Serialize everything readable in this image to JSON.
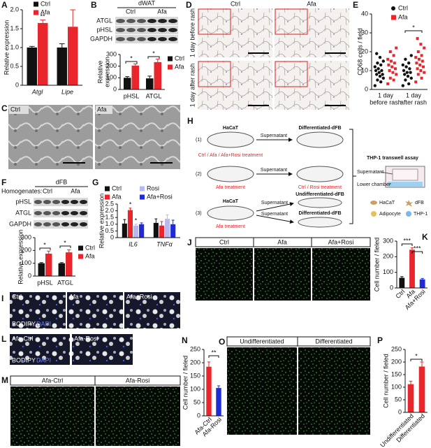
{
  "chart_data": [
    {
      "type": "bar",
      "panel": "A",
      "y_label": "Relative expression",
      "categories": [
        "Atgl",
        "Lipe"
      ],
      "series": [
        {
          "name": "Ctrl",
          "color": "#111111",
          "values": [
            1.0,
            1.0
          ],
          "errors": [
            0.03,
            0.1
          ]
        },
        {
          "name": "Afa",
          "color": "#e8262c",
          "values": [
            1.65,
            1.55
          ],
          "errors": [
            0.08,
            0.45
          ]
        }
      ],
      "ylim": [
        0,
        2
      ],
      "yticks": [
        0,
        0.5,
        {
          "value": 1,
          "label": "1.0"
        },
        1.5,
        {
          "value": 2,
          "label": "2.0"
        }
      ],
      "annotations": [
        "**"
      ]
    },
    {
      "type": "bar",
      "y_label": [
        "Relative",
        "expression"
      ],
      "categories": [
        "pHSL",
        "ATGL"
      ],
      "series": [
        {
          "name": "Ctrl",
          "color": "#111111",
          "values": [
            100,
            95
          ],
          "errors": [
            10,
            20
          ]
        },
        {
          "name": "Afa",
          "color": "#e8262c",
          "values": [
            205,
            235
          ],
          "errors": [
            15,
            25
          ]
        }
      ],
      "ylim": [
        0,
        300
      ],
      "yticks": [
        0,
        100,
        200,
        300
      ],
      "annotations": [
        "*",
        "*"
      ]
    },
    {
      "type": "dot",
      "panel": "E",
      "y_label": "CD68 cells / field",
      "categories": [
        [
          "1 day",
          "before rash"
        ],
        [
          "1 day",
          "after rash"
        ]
      ],
      "series": [
        {
          "name": "Ctrl",
          "color": "#111111",
          "marker": "circle",
          "values": [
            [
              2,
              4,
              5,
              6,
              7,
              8,
              8,
              9,
              10,
              10,
              11,
              12,
              13,
              14,
              15,
              17,
              19
            ],
            [
              2,
              3,
              5,
              6,
              7,
              8,
              9,
              9,
              10,
              11,
              12,
              13,
              14,
              16,
              18
            ]
          ]
        },
        {
          "name": "Afa",
          "color": "#e8262c",
          "marker": "square",
          "values": [
            [
              3,
              5,
              6,
              8,
              9,
              10,
              11,
              12,
              13,
              14,
              15,
              16,
              18,
              20,
              22
            ],
            [
              4,
              6,
              8,
              9,
              10,
              11,
              12,
              13,
              14,
              15,
              16,
              17,
              18,
              20,
              22,
              24,
              27
            ]
          ]
        }
      ],
      "ylim": [
        0,
        40
      ],
      "yticks": [
        0,
        10,
        20,
        30,
        40
      ],
      "annotations": [
        "*"
      ]
    },
    {
      "type": "bar",
      "y_label": "Relative expression",
      "categories": [
        "pHSL",
        "ATGL"
      ],
      "series": [
        {
          "name": "Ctrl",
          "color": "#111111",
          "values": [
            100,
            100
          ],
          "errors": [
            5,
            5
          ]
        },
        {
          "name": "Afa",
          "color": "#e8262c",
          "values": [
            175,
            185
          ],
          "errors": [
            20,
            20
          ]
        }
      ],
      "ylim": [
        0,
        300
      ],
      "yticks": [
        0,
        100,
        200,
        300
      ],
      "annotations": [
        "*",
        "*"
      ]
    },
    {
      "type": "bar",
      "panel": "G",
      "y_label": "Relative expression",
      "categories": [
        "IL6",
        "TNFα"
      ],
      "series": [
        {
          "name": "Ctrl",
          "color": "#111111",
          "values": [
            1.05,
            1.1
          ],
          "errors": [
            0.3,
            0.3
          ]
        },
        {
          "name": "Afa",
          "color": "#e8262c",
          "values": [
            2.05,
            0.9
          ],
          "errors": [
            0.15,
            0.3
          ]
        },
        {
          "name": "Rosi",
          "color": "#b9b9f2",
          "values": [
            0.9,
            1.4
          ],
          "errors": [
            0.1,
            0.3
          ]
        },
        {
          "name": "Afa+Rosi",
          "color": "#1f2bd6",
          "values": [
            1.0,
            1.0
          ],
          "errors": [
            0.1,
            0.3
          ]
        }
      ],
      "ylim": [
        0,
        2.5
      ],
      "yticks": [
        0,
        0.5,
        {
          "value": 1,
          "label": "1.0"
        },
        1.5,
        {
          "value": 2,
          "label": "2.0"
        },
        2.5
      ],
      "annotations": [
        "*",
        "*"
      ]
    },
    {
      "type": "bar",
      "panel": "K",
      "y_label": "Cell number / fieled",
      "categories": [
        "Ctrl",
        "Afa",
        "Afa+Rosi"
      ],
      "values": [
        65,
        245,
        55
      ],
      "errors": [
        8,
        12,
        6
      ],
      "colors": [
        "#111111",
        "#e8262c",
        "#1f2bd6"
      ],
      "ylim": [
        0,
        300
      ],
      "yticks": [
        0,
        100,
        200,
        300
      ],
      "annotations": [
        "***",
        "***"
      ]
    },
    {
      "type": "bar",
      "panel": "N",
      "y_label": "Cell number / fieled",
      "categories": [
        "Afa-Ctrl",
        "Afa-Rosi"
      ],
      "values": [
        185,
        105
      ],
      "errors": [
        18,
        8
      ],
      "colors": [
        "#e8262c",
        "#1f2bd6"
      ],
      "ylim": [
        0,
        250
      ],
      "yticks": [
        0,
        50,
        100,
        150,
        200,
        250
      ],
      "annotations": [
        "**"
      ]
    },
    {
      "type": "bar",
      "panel": "P",
      "y_label": "Cell number / fieled",
      "categories": [
        "Undifferentiated",
        "Differentiated"
      ],
      "values": [
        112,
        182
      ],
      "errors": [
        12,
        18
      ],
      "colors": [
        "#e8262c",
        "#e8262c"
      ],
      "ylim": [
        0,
        250
      ],
      "yticks": [
        0,
        50,
        100,
        150,
        200,
        250
      ],
      "annotations": [
        "*"
      ]
    }
  ],
  "figure": {
    "blots": [
      {
        "panel": "B",
        "title": "dWAT",
        "groups": [
          "Ctrl",
          "Afa"
        ],
        "rows": [
          "ATGL",
          "pHSL",
          "GAPDH"
        ]
      },
      {
        "panel": "F",
        "title": "dFB",
        "prefix": "Homogenates:",
        "groups": [
          "Ctrl",
          "Afa"
        ],
        "rows": [
          "pHSL",
          "ATGL",
          "GAPDH"
        ]
      }
    ],
    "images": {
      "C": {
        "panel": "C",
        "labels": [
          "Ctrl",
          "Afa"
        ]
      },
      "D": {
        "panel": "D",
        "columns": [
          "Ctrl",
          "Afa"
        ],
        "rows": [
          "1 day before rash",
          "1 day after rash"
        ]
      },
      "I": {
        "panel": "I",
        "labels": [
          "Ctrl",
          "Afa",
          "Afa+Rosi"
        ],
        "stains": [
          "BODIPY",
          "DAPI"
        ]
      },
      "J": {
        "panel": "J",
        "labels": [
          "Ctrl",
          "Afa",
          "Afa+Rosi"
        ]
      },
      "L": {
        "panel": "L",
        "labels": [
          "Afa-Ctrl",
          "Afa-Rosi"
        ],
        "stains": [
          "BODIPY",
          "DAPI"
        ]
      },
      "M": {
        "panel": "M",
        "labels": [
          "Afa-Ctrl",
          "Afa-Rosi"
        ]
      },
      "O": {
        "panel": "O",
        "labels": [
          "Undifferentiated",
          "Differentiated"
        ]
      }
    },
    "diagram": {
      "panel": "H",
      "steps": [
        {
          "number": "(1)",
          "source": "HaCaT",
          "arrow": "Supernatant",
          "target": "Differentiated-dFB",
          "source_treatment": "Ctrl / Afa / Afa+Rosi treatment"
        },
        {
          "number": "(2)",
          "arrow": "Supernatant",
          "source_treatment": "Afa treatment",
          "target_treatment": "Ctrl / Rosi treatment"
        },
        {
          "number": "(3)",
          "source": "HaCaT",
          "arrows": [
            "Supernatant",
            "Supernatant"
          ],
          "targets": [
            "Undifferentiated-dFB",
            "Differentiated-dFB"
          ],
          "source_treatment": "Afa treatment"
        }
      ],
      "assay": {
        "title": "THP-1 transwell assay",
        "upper": "Supernatant",
        "lower": "Lower chamber",
        "legend": [
          "HaCaT",
          "dFB",
          "Adipocyte",
          "THP-1"
        ]
      }
    }
  }
}
